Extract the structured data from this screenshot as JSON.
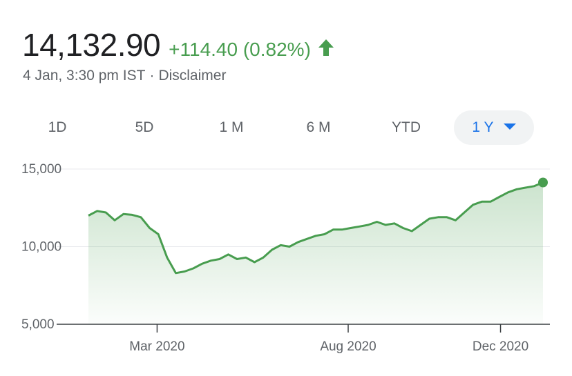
{
  "quote": {
    "price": "14,132.90",
    "change": "+114.40 (0.82%)",
    "direction_icon": "arrow-up-icon",
    "positive_color": "#489d4f",
    "timestamp": "4 Jan, 3:30 pm IST",
    "separator": "·",
    "disclaimer": "Disclaimer"
  },
  "range_tabs": {
    "items": [
      {
        "label": "1D"
      },
      {
        "label": "5D"
      },
      {
        "label": "1 M"
      },
      {
        "label": "6 M"
      },
      {
        "label": "YTD"
      },
      {
        "label": "1 Y"
      }
    ],
    "selected": "1 Y",
    "accent_color": "#1a73e8"
  },
  "chart_data": {
    "type": "area",
    "y_tick_labels": [
      "15,000",
      "10,000",
      "5,000"
    ],
    "y_ticks": [
      15000,
      10000,
      5000
    ],
    "ylim": [
      5000,
      15000
    ],
    "x_tick_labels": [
      "Mar 2020",
      "Aug 2020",
      "Dec 2020"
    ],
    "x_ticks": [
      "2020-03-01",
      "2020-08-01",
      "2020-12-01"
    ],
    "xlim": [
      "2020-01-06",
      "2021-01-04"
    ],
    "line_color": "#489d4f",
    "grid": true,
    "series": [
      {
        "x": [
          "2020-01-06",
          "2020-01-13",
          "2020-01-20",
          "2020-01-27",
          "2020-02-03",
          "2020-02-10",
          "2020-02-17",
          "2020-02-24",
          "2020-03-02",
          "2020-03-09",
          "2020-03-16",
          "2020-03-23",
          "2020-03-30",
          "2020-04-06",
          "2020-04-13",
          "2020-04-20",
          "2020-04-27",
          "2020-05-04",
          "2020-05-11",
          "2020-05-18",
          "2020-05-25",
          "2020-06-01",
          "2020-06-08",
          "2020-06-15",
          "2020-06-22",
          "2020-06-29",
          "2020-07-06",
          "2020-07-13",
          "2020-07-20",
          "2020-07-27",
          "2020-08-03",
          "2020-08-10",
          "2020-08-17",
          "2020-08-24",
          "2020-08-31",
          "2020-09-07",
          "2020-09-14",
          "2020-09-21",
          "2020-09-28",
          "2020-10-05",
          "2020-10-12",
          "2020-10-19",
          "2020-10-26",
          "2020-11-02",
          "2020-11-09",
          "2020-11-16",
          "2020-11-23",
          "2020-11-30",
          "2020-12-07",
          "2020-12-14",
          "2020-12-21",
          "2020-12-28",
          "2021-01-04"
        ],
        "values": [
          12000,
          12300,
          12200,
          11700,
          12100,
          12050,
          11900,
          11200,
          10800,
          9300,
          8300,
          8400,
          8600,
          8900,
          9100,
          9200,
          9500,
          9200,
          9300,
          9000,
          9300,
          9800,
          10100,
          10000,
          10300,
          10500,
          10700,
          10800,
          11100,
          11100,
          11200,
          11300,
          11400,
          11600,
          11400,
          11500,
          11200,
          11000,
          11400,
          11800,
          11900,
          11900,
          11700,
          12200,
          12700,
          12900,
          12900,
          13200,
          13500,
          13700,
          13800,
          13900,
          14133
        ]
      }
    ]
  }
}
